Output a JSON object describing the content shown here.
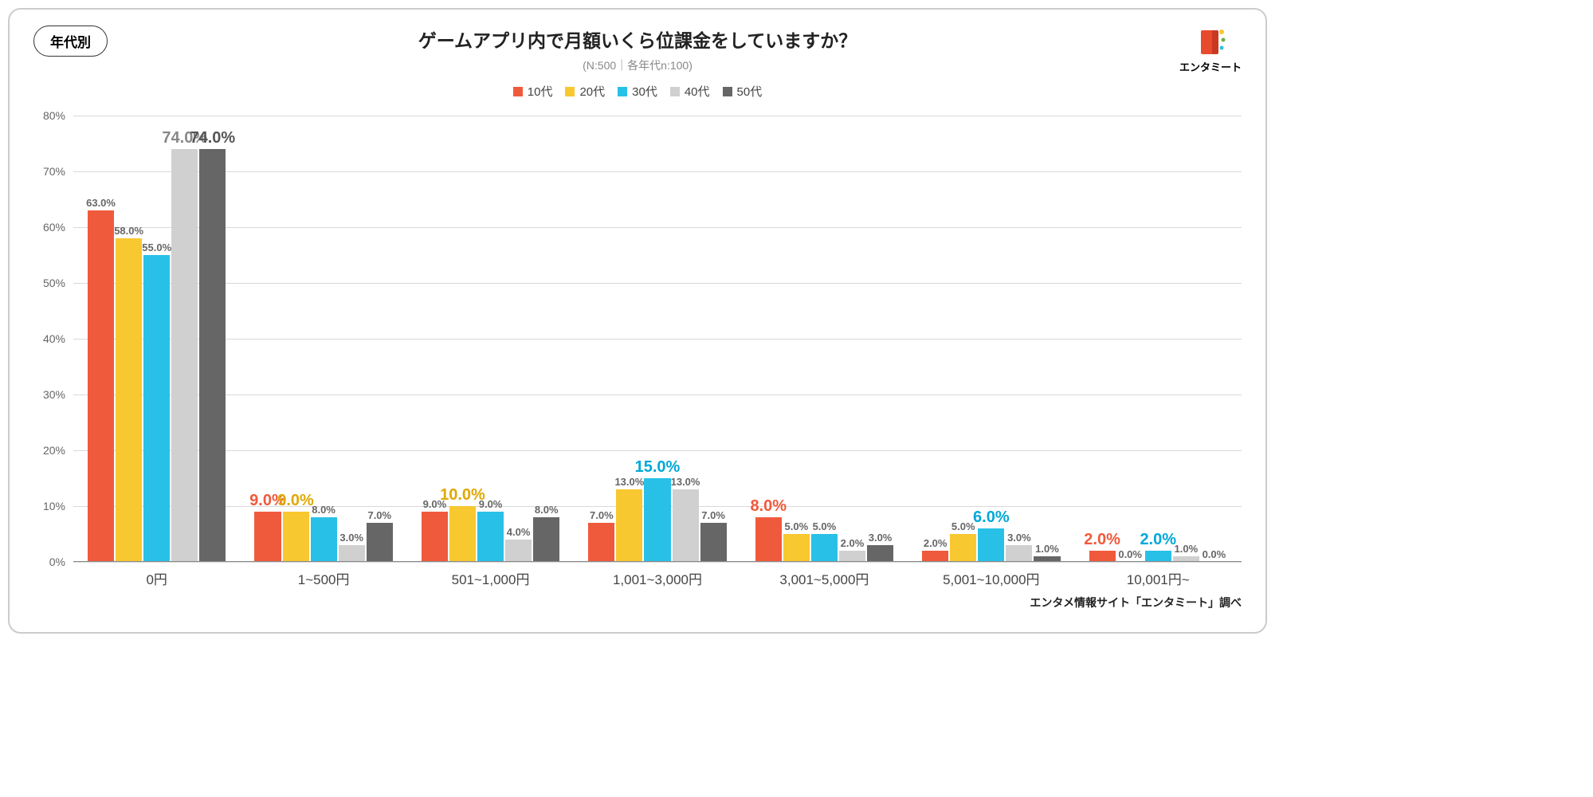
{
  "badge": "年代別",
  "title": "ゲームアプリ内で月額いくら位課金をしていますか？",
  "subtitle": "(N:500｜各年代n:100)",
  "logo_text": "エンタミート",
  "credit": "エンタメ情報サイト「エンタミート」調べ",
  "chart": {
    "type": "grouped-bar",
    "y_max": 80,
    "y_tick_step": 10,
    "y_suffix": "%",
    "background_color": "#ffffff",
    "grid_color": "#d9d9d9",
    "series": [
      {
        "name": "10代",
        "color": "#f05a3c",
        "label_color": "#f05a3c"
      },
      {
        "name": "20代",
        "color": "#f8c830",
        "label_color": "#e0a800"
      },
      {
        "name": "30代",
        "color": "#29c0e7",
        "label_color": "#00a8d8"
      },
      {
        "name": "40代",
        "color": "#d0d0d0",
        "label_color": "#888888"
      },
      {
        "name": "50代",
        "color": "#666666",
        "label_color": "#555555"
      }
    ],
    "categories": [
      "0円",
      "1~500円",
      "501~1,000円",
      "1,001~3,000円",
      "3,001~5,000円",
      "5,001~10,000円",
      "10,001円~"
    ],
    "data": [
      [
        63.0,
        58.0,
        55.0,
        74.0,
        74.0
      ],
      [
        9.0,
        9.0,
        8.0,
        3.0,
        7.0
      ],
      [
        9.0,
        10.0,
        9.0,
        4.0,
        8.0
      ],
      [
        7.0,
        13.0,
        15.0,
        13.0,
        7.0
      ],
      [
        8.0,
        5.0,
        5.0,
        2.0,
        3.0
      ],
      [
        2.0,
        5.0,
        6.0,
        3.0,
        1.0
      ],
      [
        2.0,
        0.0,
        2.0,
        1.0,
        0.0
      ]
    ],
    "highlights": [
      [
        false,
        false,
        false,
        true,
        true
      ],
      [
        true,
        true,
        false,
        false,
        false
      ],
      [
        false,
        true,
        false,
        false,
        false
      ],
      [
        false,
        false,
        true,
        false,
        false
      ],
      [
        true,
        false,
        false,
        false,
        false
      ],
      [
        false,
        false,
        true,
        false,
        false
      ],
      [
        true,
        false,
        true,
        false,
        false
      ]
    ]
  }
}
